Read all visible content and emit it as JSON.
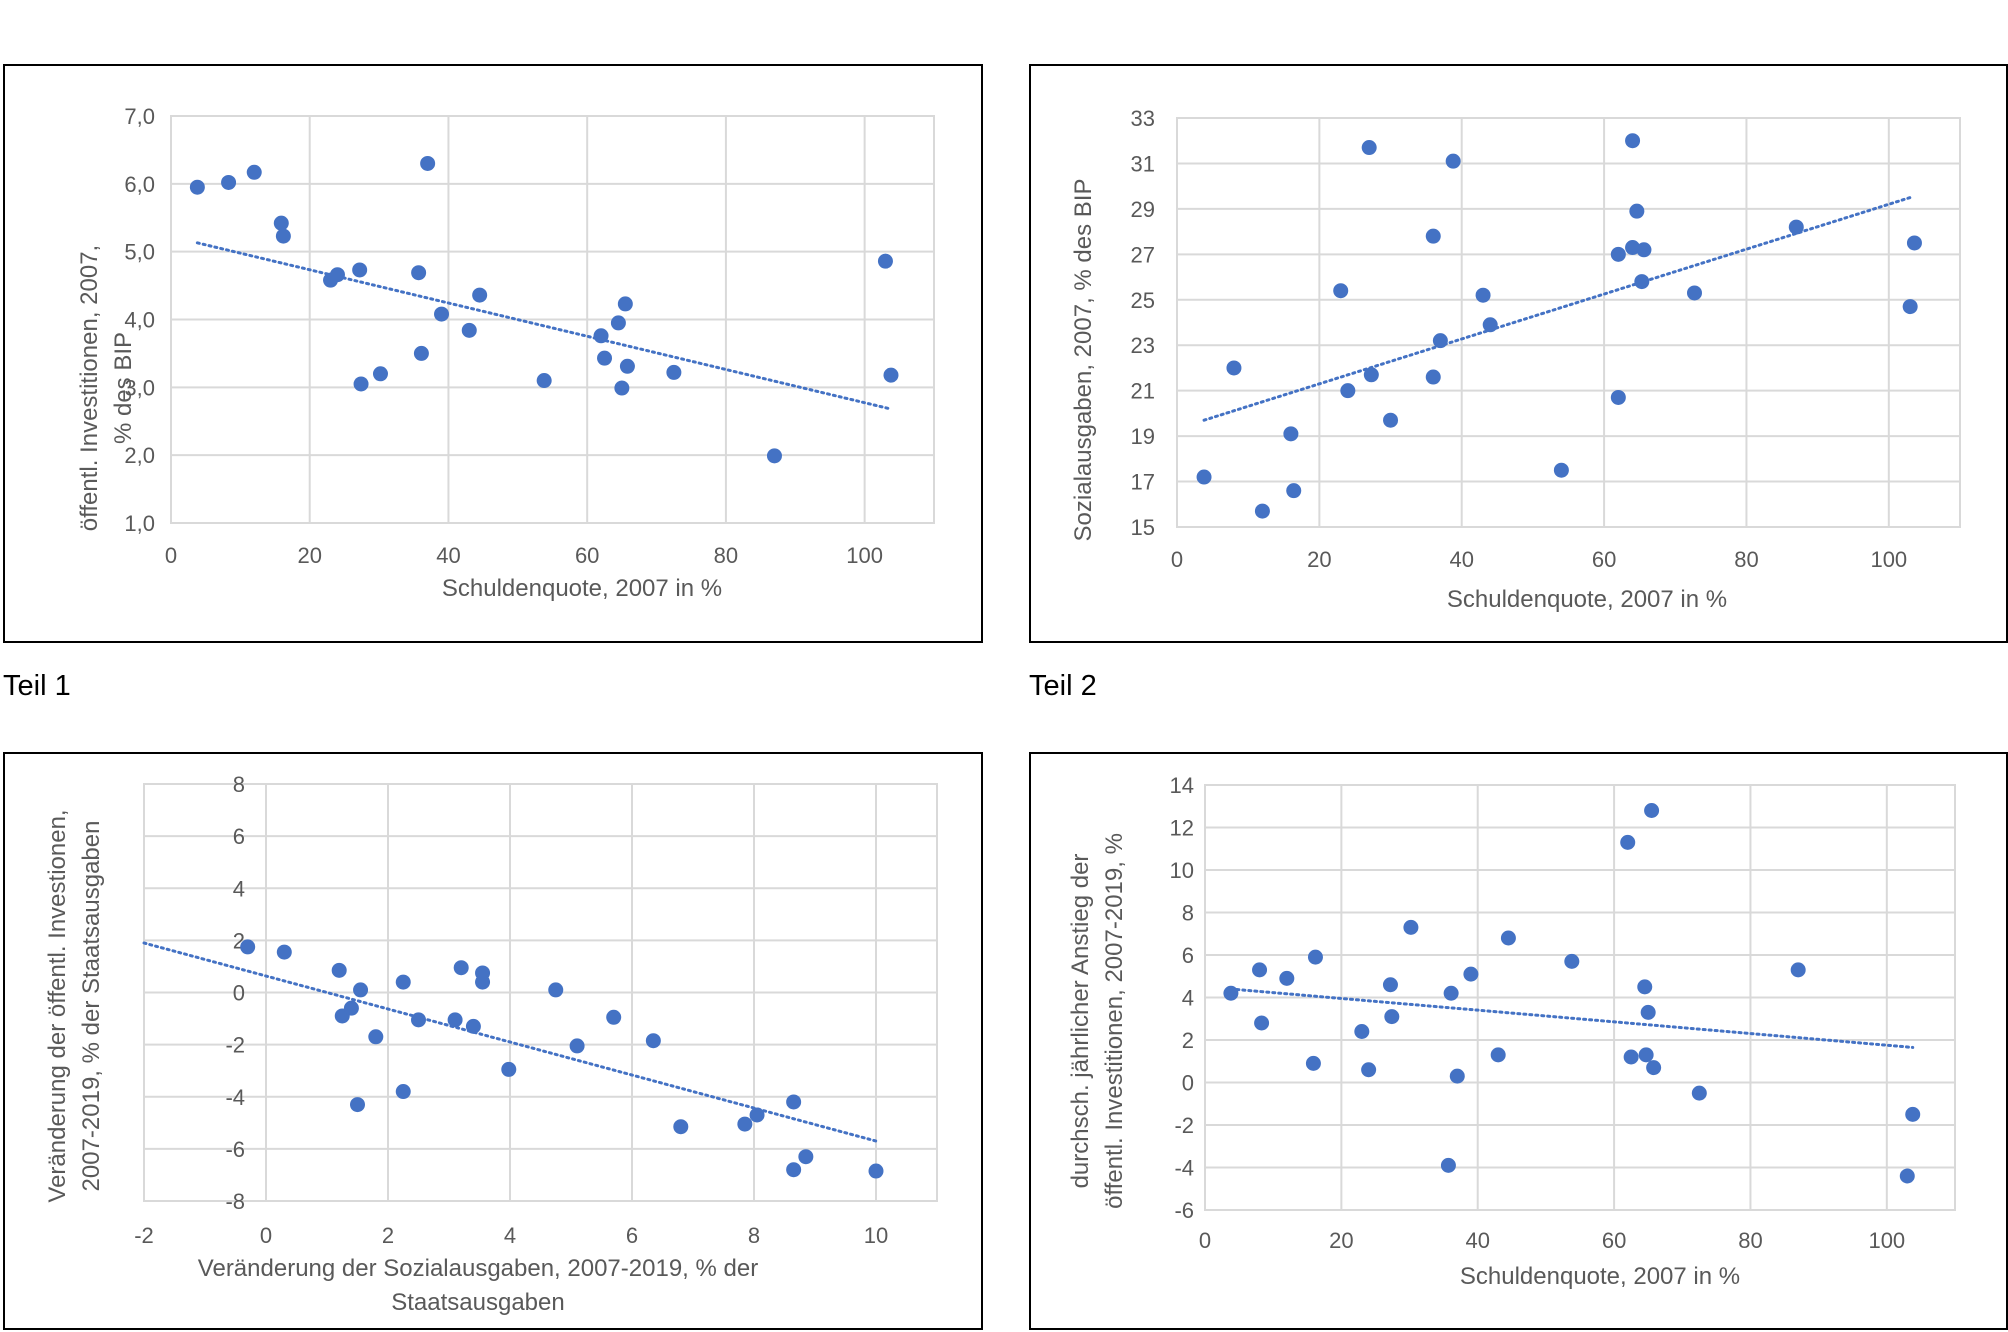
{
  "captions": {
    "teil1": "Teil 1",
    "teil2": "Teil 2"
  },
  "colors": {
    "point": "#4472C4",
    "trend": "#4472C4",
    "grid": "#d9d9d9",
    "text": "#595959"
  },
  "chart_data": [
    {
      "id": "c1",
      "type": "scatter",
      "xlabel": [
        "Schuldenquote, 2007  in %"
      ],
      "ylabel": [
        "öffentl. Investitionen, 2007,",
        "% des BIP"
      ],
      "xlim": [
        0,
        110
      ],
      "ylim": [
        1,
        7
      ],
      "xticks": [
        0,
        20,
        40,
        60,
        80,
        100
      ],
      "yticks": [
        1,
        2,
        3,
        4,
        5,
        6,
        7
      ],
      "ytick_labels": [
        "1,0",
        "2,0",
        "3,0",
        "4,0",
        "5,0",
        "6,0",
        "7,0"
      ],
      "x": [
        3.8,
        8.3,
        12,
        15.9,
        16.2,
        23,
        24,
        27.2,
        27.4,
        30.2,
        35.7,
        36.1,
        37,
        39,
        43,
        44.5,
        53.8,
        62,
        62.5,
        64.5,
        65,
        65.5,
        65.8,
        72.5,
        87,
        103,
        103.8
      ],
      "y": [
        5.95,
        6.02,
        6.17,
        5.42,
        5.23,
        4.58,
        4.66,
        4.73,
        3.05,
        3.2,
        4.69,
        3.5,
        6.3,
        4.08,
        3.84,
        4.36,
        3.1,
        3.76,
        3.43,
        3.95,
        2.99,
        4.23,
        3.31,
        3.22,
        1.99,
        4.86,
        3.18
      ],
      "trend": {
        "x1": 3.8,
        "y1": 5.13,
        "x2": 103.8,
        "y2": 2.68
      }
    },
    {
      "id": "c2",
      "type": "scatter",
      "xlabel": [
        "Schuldenquote, 2007 in %"
      ],
      "ylabel": [
        "Sozialausgaben, 2007, % des BIP"
      ],
      "xlim": [
        0,
        110
      ],
      "ylim": [
        15,
        33
      ],
      "xticks": [
        0,
        20,
        40,
        60,
        80,
        100
      ],
      "yticks": [
        15,
        17,
        19,
        21,
        23,
        25,
        27,
        29,
        31,
        33
      ],
      "ytick_labels": [
        "15",
        "17",
        "19",
        "21",
        "23",
        "25",
        "27",
        "29",
        "31",
        "33"
      ],
      "x": [
        3.8,
        8,
        12,
        16,
        16.4,
        23,
        24,
        27,
        27.3,
        30,
        36,
        36,
        37,
        38.8,
        43,
        44,
        54,
        62,
        62,
        64,
        64,
        64.6,
        65.3,
        65.6,
        72.7,
        87,
        103,
        103.6
      ],
      "y": [
        17.2,
        22.0,
        15.7,
        19.1,
        16.6,
        25.4,
        21.0,
        31.7,
        21.7,
        19.7,
        27.8,
        21.6,
        23.2,
        31.1,
        25.2,
        23.9,
        17.5,
        20.7,
        27.0,
        27.3,
        32.0,
        28.9,
        25.8,
        27.2,
        25.3,
        28.2,
        24.7,
        27.5
      ],
      "trend": {
        "x1": 3.8,
        "y1": 19.7,
        "x2": 103.0,
        "y2": 29.5
      }
    },
    {
      "id": "c3",
      "type": "scatter",
      "xlabel": [
        "Veränderung der Sozialausgaben, 2007-2019, % der",
        "Staatsausgaben"
      ],
      "ylabel": [
        "Veränderung  der öffentl. Investionen,",
        "2007-2019, % der Staatsausgaben"
      ],
      "xlim": [
        -2,
        11
      ],
      "ylim": [
        -8,
        8
      ],
      "xticks": [
        -2,
        0,
        2,
        4,
        6,
        8,
        10
      ],
      "yticks": [
        -8,
        -6,
        -4,
        -2,
        0,
        2,
        4,
        6,
        8
      ],
      "ytick_labels": [
        "-8",
        "-6",
        "-4",
        "-2",
        "0",
        "2",
        "4",
        "6",
        "8"
      ],
      "x": [
        -0.3,
        0.3,
        1.2,
        1.25,
        1.4,
        1.5,
        1.55,
        1.8,
        2.25,
        2.25,
        2.5,
        3.1,
        3.2,
        3.4,
        3.55,
        3.55,
        3.98,
        4.75,
        5.1,
        5.7,
        6.35,
        6.8,
        7.85,
        8.05,
        8.65,
        8.65,
        8.85,
        10
      ],
      "y": [
        1.75,
        1.55,
        0.85,
        -0.9,
        -0.6,
        -4.3,
        0.1,
        -1.7,
        0.4,
        -3.8,
        -1.05,
        -1.05,
        0.95,
        -1.3,
        0.75,
        0.4,
        -2.95,
        0.1,
        -2.05,
        -0.95,
        -1.85,
        -5.15,
        -5.05,
        -4.7,
        -4.2,
        -6.8,
        -6.3,
        -6.85
      ],
      "trend": {
        "x1": -2,
        "y1": 1.9,
        "x2": 10,
        "y2": -5.7
      }
    },
    {
      "id": "c4",
      "type": "scatter",
      "xlabel": [
        "Schuldenquote, 2007 in %"
      ],
      "ylabel": [
        "durchsch. jährlicher Anstieg der",
        "öffentl. Investitionen, 2007-2019, %"
      ],
      "xlim": [
        0,
        110
      ],
      "ylim": [
        -6,
        14
      ],
      "xticks": [
        0,
        20,
        40,
        60,
        80,
        100
      ],
      "yticks": [
        -6,
        -4,
        -2,
        0,
        2,
        4,
        6,
        8,
        10,
        12,
        14
      ],
      "ytick_labels": [
        "-6",
        "-4",
        "-2",
        "0",
        "2",
        "4",
        "6",
        "8",
        "10",
        "12",
        "14"
      ],
      "x": [
        3.8,
        8,
        8.3,
        12,
        15.9,
        16.2,
        23,
        24,
        27.2,
        27.4,
        30.2,
        35.7,
        36.1,
        37,
        39,
        43,
        44.5,
        53.8,
        62,
        62.5,
        64.5,
        64.7,
        65,
        65.5,
        65.8,
        72.5,
        87,
        103,
        103.8
      ],
      "y": [
        4.2,
        5.3,
        2.8,
        4.9,
        0.9,
        5.9,
        2.4,
        0.6,
        4.6,
        3.1,
        7.3,
        -3.9,
        4.2,
        0.3,
        5.1,
        1.3,
        6.8,
        5.7,
        11.3,
        1.2,
        4.5,
        1.3,
        3.3,
        12.8,
        0.7,
        -0.5,
        5.3,
        -4.4,
        -1.5
      ],
      "trend": {
        "x1": 3.8,
        "y1": 4.4,
        "x2": 103.8,
        "y2": 1.65
      }
    }
  ]
}
